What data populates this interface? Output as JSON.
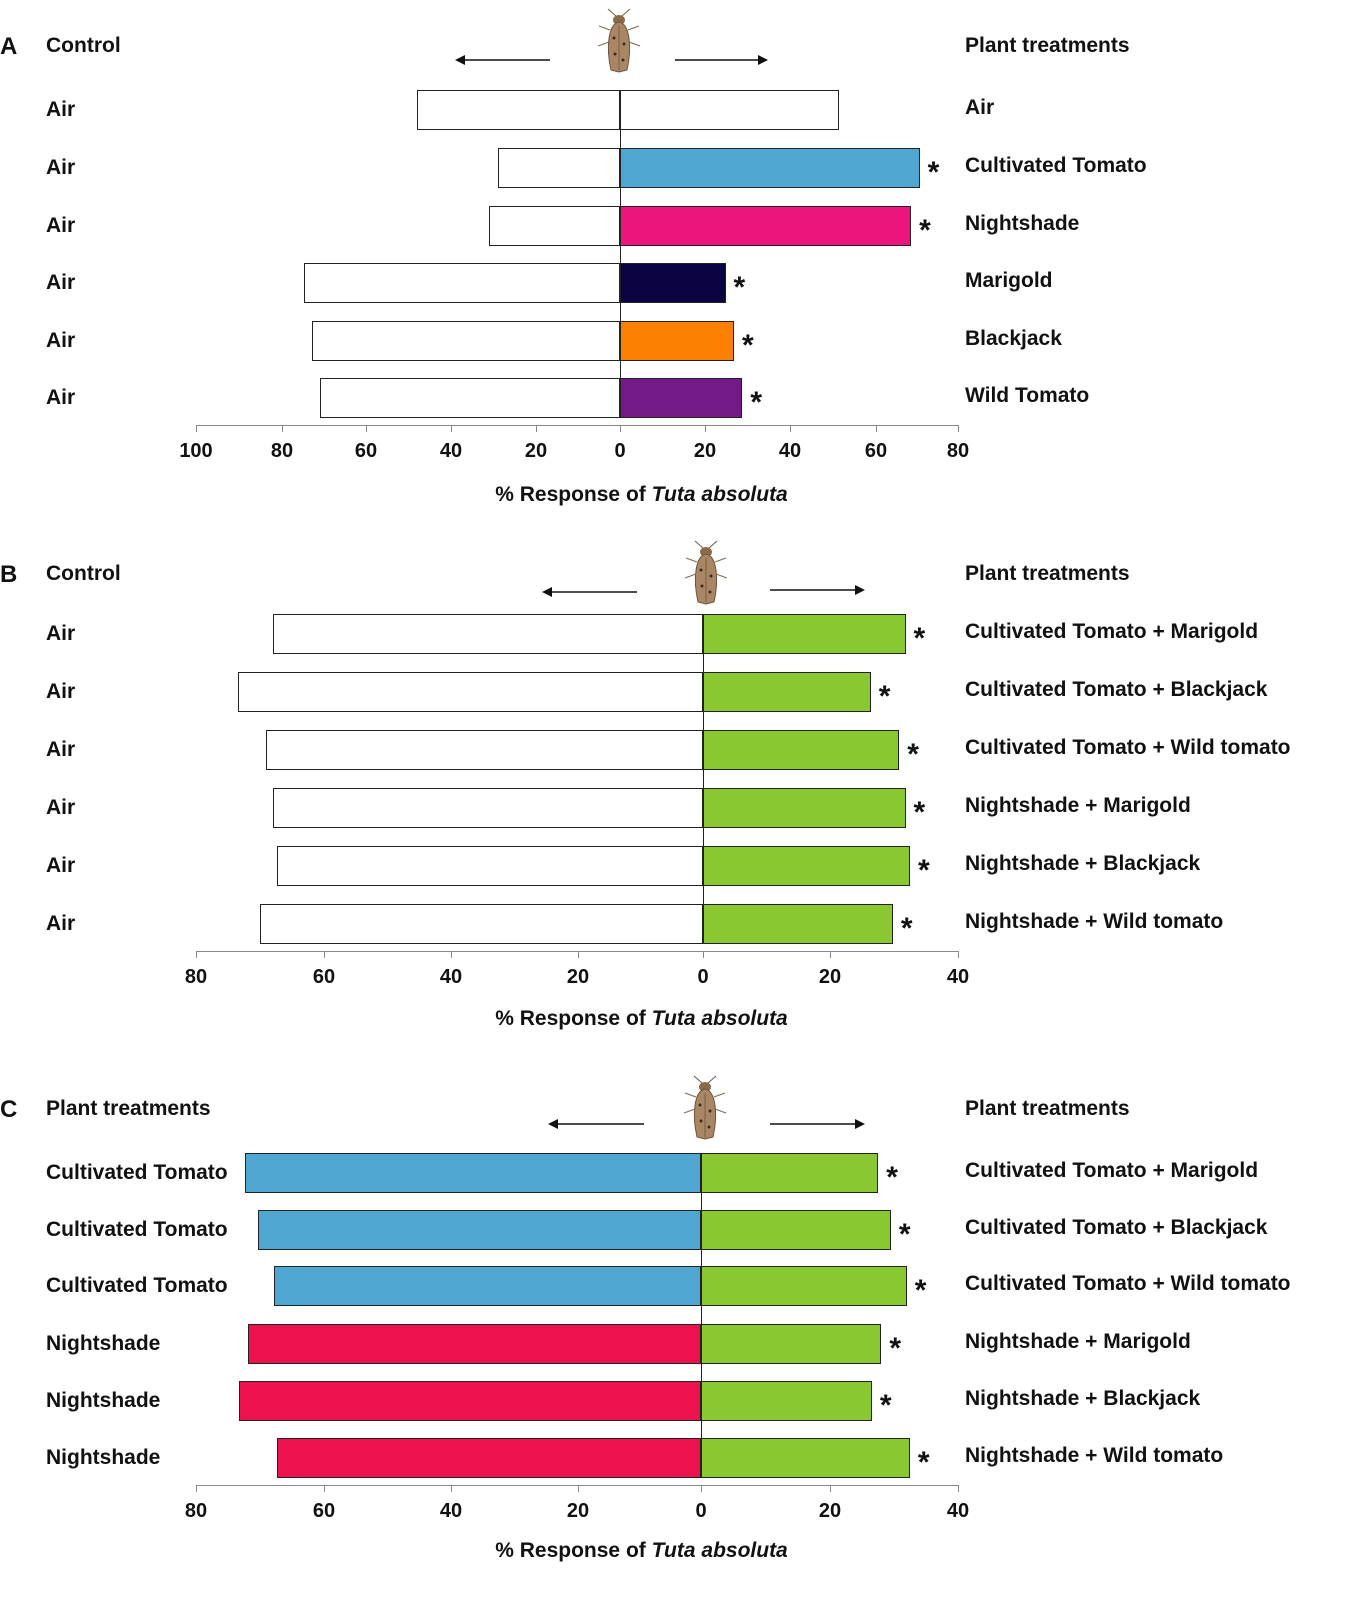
{
  "figure": {
    "xlabel_prefix": "% Response of ",
    "xlabel_species": "Tuta absoluta",
    "significance_marker": "*"
  },
  "colors": {
    "air": "#ffffff",
    "cultivated_tomato": "#4fa6d1",
    "nightshade": "#ec157c",
    "marigold": "#0b0442",
    "blackjack": "#fb7f00",
    "wild_tomato": "#741a88",
    "mixture": "#8ac832",
    "cultivated_tomato_c": "#4fa6d1",
    "nightshade_c": "#eb124e"
  },
  "chart_data": [
    {
      "panel": "A",
      "type": "bar",
      "orientation": "diverging-horizontal",
      "left_header": "Control",
      "right_header": "Plant treatments",
      "xlabel": "% Response of Tuta absoluta",
      "left_max": 100,
      "right_max": 80,
      "left_ticks": [
        "100",
        "80",
        "60",
        "40",
        "20"
      ],
      "right_ticks": [
        "0",
        "20",
        "40",
        "60",
        "80"
      ],
      "rows": [
        {
          "left_label": "Air",
          "right_label": "Air",
          "left_value": 48,
          "right_value": 52,
          "left_color": "air",
          "right_color": "air",
          "significant": false
        },
        {
          "left_label": "Air",
          "right_label": "Cultivated Tomato",
          "left_value": 29,
          "right_value": 71,
          "left_color": "air",
          "right_color": "cultivated_tomato",
          "significant": true
        },
        {
          "left_label": "Air",
          "right_label": "Nightshade",
          "left_value": 31,
          "right_value": 69,
          "left_color": "air",
          "right_color": "nightshade",
          "significant": true
        },
        {
          "left_label": "Air",
          "right_label": "Marigold",
          "left_value": 75,
          "right_value": 25,
          "left_color": "air",
          "right_color": "marigold",
          "significant": true
        },
        {
          "left_label": "Air",
          "right_label": "Blackjack",
          "left_value": 73,
          "right_value": 27,
          "left_color": "air",
          "right_color": "blackjack",
          "significant": true
        },
        {
          "left_label": "Air",
          "right_label": "Wild Tomato",
          "left_value": 71,
          "right_value": 29,
          "left_color": "air",
          "right_color": "wild_tomato",
          "significant": true
        }
      ]
    },
    {
      "panel": "B",
      "type": "bar",
      "orientation": "diverging-horizontal",
      "left_header": "Control",
      "right_header": "Plant treatments",
      "xlabel": "% Response of Tuta absoluta",
      "left_max": 80,
      "right_max": 40,
      "left_ticks": [
        "80",
        "60",
        "40",
        "20"
      ],
      "right_ticks": [
        "0",
        "20",
        "40"
      ],
      "rows": [
        {
          "left_label": "Air",
          "right_label": "Cultivated Tomato + Marigold",
          "left_value": 68,
          "right_value": 32,
          "left_color": "air",
          "right_color": "mixture",
          "significant": true
        },
        {
          "left_label": "Air",
          "right_label": "Cultivated Tomato + Blackjack",
          "left_value": 73.5,
          "right_value": 26.5,
          "left_color": "air",
          "right_color": "mixture",
          "significant": true
        },
        {
          "left_label": "Air",
          "right_label": "Cultivated Tomato + Wild tomato",
          "left_value": 69,
          "right_value": 31,
          "left_color": "air",
          "right_color": "mixture",
          "significant": true
        },
        {
          "left_label": "Air",
          "right_label": "Nightshade + Marigold",
          "left_value": 68,
          "right_value": 32,
          "left_color": "air",
          "right_color": "mixture",
          "significant": true
        },
        {
          "left_label": "Air",
          "right_label": "Nightshade + Blackjack",
          "left_value": 67.3,
          "right_value": 32.7,
          "left_color": "air",
          "right_color": "mixture",
          "significant": true
        },
        {
          "left_label": "Air",
          "right_label": "Nightshade + Wild tomato",
          "left_value": 70,
          "right_value": 30,
          "left_color": "air",
          "right_color": "mixture",
          "significant": true
        }
      ]
    },
    {
      "panel": "C",
      "type": "bar",
      "orientation": "diverging-horizontal",
      "left_header": "Plant treatments",
      "right_header": "Plant treatments",
      "xlabel": "% Response of Tuta absoluta",
      "left_max": 80,
      "right_max": 40,
      "left_ticks": [
        "80",
        "60",
        "40",
        "20"
      ],
      "right_ticks": [
        "0",
        "20",
        "40"
      ],
      "rows": [
        {
          "left_label": "Cultivated Tomato",
          "right_label": "Cultivated Tomato + Marigold",
          "left_value": 72,
          "right_value": 28,
          "left_color": "cultivated_tomato_c",
          "right_color": "mixture",
          "significant": true
        },
        {
          "left_label": "Cultivated Tomato",
          "right_label": "Cultivated Tomato + Blackjack",
          "left_value": 70,
          "right_value": 30,
          "left_color": "cultivated_tomato_c",
          "right_color": "mixture",
          "significant": true
        },
        {
          "left_label": "Cultivated Tomato",
          "right_label": "Cultivated Tomato + Wild tomato",
          "left_value": 67.5,
          "right_value": 32.5,
          "left_color": "cultivated_tomato_c",
          "right_color": "mixture",
          "significant": true
        },
        {
          "left_label": "Nightshade",
          "right_label": "Nightshade + Marigold",
          "left_value": 71.5,
          "right_value": 28.5,
          "left_color": "nightshade_c",
          "right_color": "mixture",
          "significant": true
        },
        {
          "left_label": "Nightshade",
          "right_label": "Nightshade + Blackjack",
          "left_value": 73,
          "right_value": 27,
          "left_color": "nightshade_c",
          "right_color": "mixture",
          "significant": true
        },
        {
          "left_label": "Nightshade",
          "right_label": "Nightshade + Wild tomato",
          "left_value": 67,
          "right_value": 33,
          "left_color": "nightshade_c",
          "right_color": "mixture",
          "significant": true
        }
      ]
    }
  ]
}
